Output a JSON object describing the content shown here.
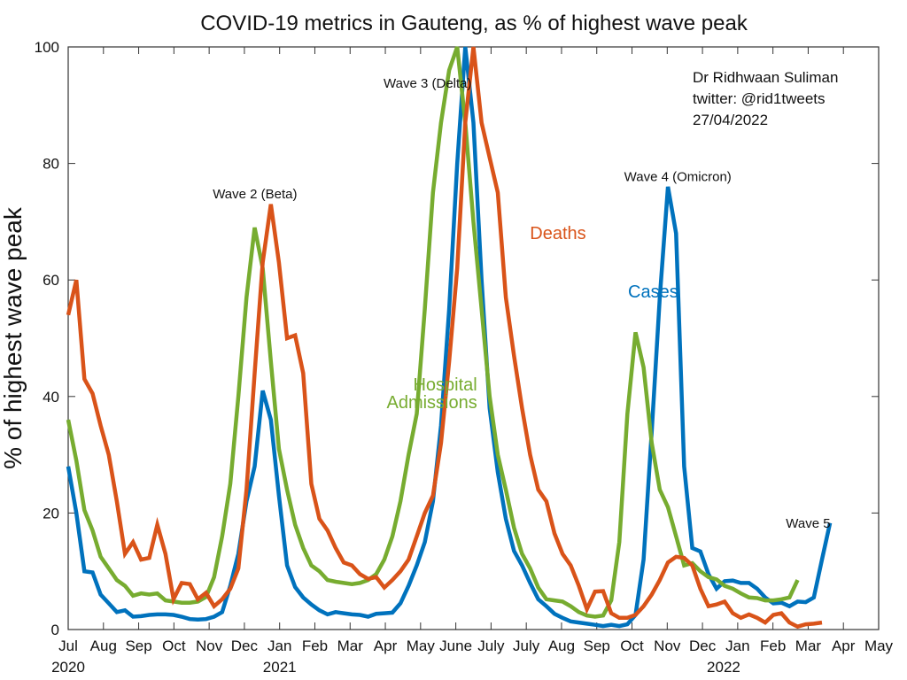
{
  "chart_data": {
    "type": "line",
    "title": "COVID-19 metrics in Gauteng, as % of highest wave peak",
    "xlabel": "",
    "ylabel": "% of highest wave peak",
    "ylim": [
      0,
      100
    ],
    "yticks": [
      0,
      20,
      40,
      60,
      80,
      100
    ],
    "x_unit": "months since Jul 2020",
    "xlim": [
      0,
      23
    ],
    "xtick_labels": [
      "Jul",
      "Aug",
      "Sep",
      "Oct",
      "Nov",
      "Dec",
      "Jan",
      "Feb",
      "Mar",
      "Apr",
      "May",
      "June",
      "July",
      "July",
      "Aug",
      "Sep",
      "Oct",
      "Nov",
      "Dec",
      "Jan",
      "Feb",
      "Mar",
      "Apr",
      "May"
    ],
    "year_labels": [
      {
        "text": "2020",
        "at": 0
      },
      {
        "text": "2021",
        "at": 6
      },
      {
        "text": "2022",
        "at": 18.6
      }
    ],
    "grid": false,
    "legend": "inline labels",
    "series": [
      {
        "name": "Cases",
        "color": "#0072BD",
        "label_at": [
          16.6,
          57
        ],
        "points": [
          [
            0,
            28
          ],
          [
            0.23,
            20
          ],
          [
            0.46,
            10
          ],
          [
            0.69,
            9.8
          ],
          [
            0.92,
            6
          ],
          [
            1.15,
            4.5
          ],
          [
            1.38,
            3
          ],
          [
            1.61,
            3.3
          ],
          [
            1.84,
            2.2
          ],
          [
            2.07,
            2.3
          ],
          [
            2.3,
            2.5
          ],
          [
            2.53,
            2.6
          ],
          [
            2.76,
            2.6
          ],
          [
            2.99,
            2.5
          ],
          [
            3.22,
            2.2
          ],
          [
            3.45,
            1.8
          ],
          [
            3.68,
            1.7
          ],
          [
            3.91,
            1.8
          ],
          [
            4.14,
            2.2
          ],
          [
            4.37,
            3
          ],
          [
            4.6,
            7.5
          ],
          [
            4.83,
            13
          ],
          [
            5.06,
            22
          ],
          [
            5.29,
            28
          ],
          [
            5.52,
            41
          ],
          [
            5.75,
            36
          ],
          [
            5.98,
            23
          ],
          [
            6.21,
            11
          ],
          [
            6.44,
            7.3
          ],
          [
            6.67,
            5.5
          ],
          [
            6.9,
            4.3
          ],
          [
            7.13,
            3.3
          ],
          [
            7.36,
            2.6
          ],
          [
            7.59,
            3
          ],
          [
            7.82,
            2.8
          ],
          [
            8.05,
            2.6
          ],
          [
            8.28,
            2.5
          ],
          [
            8.51,
            2.2
          ],
          [
            8.74,
            2.7
          ],
          [
            8.97,
            2.8
          ],
          [
            9.2,
            2.9
          ],
          [
            9.43,
            4.5
          ],
          [
            9.66,
            7.5
          ],
          [
            9.89,
            11
          ],
          [
            10.12,
            15
          ],
          [
            10.35,
            22
          ],
          [
            10.58,
            35
          ],
          [
            10.81,
            55
          ],
          [
            11.04,
            80
          ],
          [
            11.27,
            100
          ],
          [
            11.5,
            87
          ],
          [
            11.73,
            60
          ],
          [
            11.96,
            38
          ],
          [
            12.19,
            27
          ],
          [
            12.42,
            19
          ],
          [
            12.65,
            13.5
          ],
          [
            12.88,
            11
          ],
          [
            13.11,
            8
          ],
          [
            13.34,
            5.2
          ],
          [
            13.57,
            4
          ],
          [
            13.8,
            2.7
          ],
          [
            14.03,
            2
          ],
          [
            14.26,
            1.4
          ],
          [
            14.49,
            1.2
          ],
          [
            14.72,
            1
          ],
          [
            14.95,
            0.8
          ],
          [
            15.18,
            0.6
          ],
          [
            15.41,
            0.8
          ],
          [
            15.64,
            0.6
          ],
          [
            15.87,
            0.9
          ],
          [
            16.1,
            2.5
          ],
          [
            16.33,
            12
          ],
          [
            16.56,
            34
          ],
          [
            16.79,
            57
          ],
          [
            17.02,
            76
          ],
          [
            17.25,
            68
          ],
          [
            17.48,
            28
          ],
          [
            17.71,
            14
          ],
          [
            17.94,
            13.4
          ],
          [
            18.17,
            9.5
          ],
          [
            18.4,
            7
          ],
          [
            18.63,
            8.3
          ],
          [
            18.86,
            8.4
          ],
          [
            19.09,
            8
          ],
          [
            19.32,
            8
          ],
          [
            19.55,
            7
          ],
          [
            19.78,
            5.5
          ],
          [
            20.01,
            4.5
          ],
          [
            20.24,
            4.6
          ],
          [
            20.47,
            4
          ],
          [
            20.7,
            4.8
          ],
          [
            20.93,
            4.7
          ],
          [
            21.16,
            5.5
          ],
          [
            21.39,
            12
          ],
          [
            21.62,
            18.3
          ]
        ]
      },
      {
        "name": "Hospital Admissions",
        "label_lines": [
          "Hospital",
          "Admissions"
        ],
        "color": "#77AC30",
        "label_at": [
          10.3,
          41
        ],
        "points": [
          [
            0,
            36
          ],
          [
            0.23,
            29
          ],
          [
            0.46,
            20.5
          ],
          [
            0.69,
            17
          ],
          [
            0.92,
            12.5
          ],
          [
            1.15,
            10.5
          ],
          [
            1.38,
            8.5
          ],
          [
            1.61,
            7.5
          ],
          [
            1.84,
            5.8
          ],
          [
            2.07,
            6.2
          ],
          [
            2.3,
            6
          ],
          [
            2.53,
            6.2
          ],
          [
            2.76,
            5
          ],
          [
            2.99,
            4.8
          ],
          [
            3.22,
            4.6
          ],
          [
            3.45,
            4.6
          ],
          [
            3.68,
            4.8
          ],
          [
            3.91,
            5.6
          ],
          [
            4.14,
            9
          ],
          [
            4.37,
            16
          ],
          [
            4.6,
            25
          ],
          [
            4.83,
            40
          ],
          [
            5.06,
            57
          ],
          [
            5.29,
            69
          ],
          [
            5.52,
            62
          ],
          [
            5.75,
            46
          ],
          [
            5.98,
            31
          ],
          [
            6.21,
            24
          ],
          [
            6.44,
            18
          ],
          [
            6.67,
            14
          ],
          [
            6.9,
            11
          ],
          [
            7.13,
            10
          ],
          [
            7.36,
            8.5
          ],
          [
            7.59,
            8.2
          ],
          [
            7.82,
            8
          ],
          [
            8.05,
            7.8
          ],
          [
            8.28,
            8
          ],
          [
            8.51,
            8.5
          ],
          [
            8.74,
            9.5
          ],
          [
            8.97,
            12
          ],
          [
            9.2,
            16
          ],
          [
            9.43,
            22
          ],
          [
            9.66,
            30
          ],
          [
            9.89,
            37
          ],
          [
            10.12,
            55
          ],
          [
            10.35,
            75
          ],
          [
            10.58,
            87
          ],
          [
            10.81,
            96
          ],
          [
            11.04,
            100
          ],
          [
            11.27,
            87
          ],
          [
            11.5,
            70
          ],
          [
            11.73,
            55
          ],
          [
            11.96,
            40
          ],
          [
            12.19,
            30
          ],
          [
            12.42,
            24
          ],
          [
            12.65,
            17.5
          ],
          [
            12.88,
            13
          ],
          [
            13.11,
            10.5
          ],
          [
            13.34,
            7.2
          ],
          [
            13.57,
            5.2
          ],
          [
            13.8,
            5
          ],
          [
            14.03,
            4.8
          ],
          [
            14.26,
            4
          ],
          [
            14.49,
            3
          ],
          [
            14.72,
            2.4
          ],
          [
            14.95,
            2.2
          ],
          [
            15.18,
            2.4
          ],
          [
            15.41,
            5
          ],
          [
            15.64,
            15
          ],
          [
            15.87,
            37
          ],
          [
            16.1,
            51
          ],
          [
            16.33,
            45
          ],
          [
            16.56,
            32
          ],
          [
            16.79,
            24
          ],
          [
            17.02,
            21
          ],
          [
            17.25,
            16
          ],
          [
            17.48,
            11
          ],
          [
            17.71,
            11.4
          ],
          [
            17.94,
            10
          ],
          [
            18.17,
            9
          ],
          [
            18.4,
            8.6
          ],
          [
            18.63,
            7.5
          ],
          [
            18.86,
            7
          ],
          [
            19.09,
            6.2
          ],
          [
            19.32,
            5.5
          ],
          [
            19.55,
            5.4
          ],
          [
            19.78,
            5
          ],
          [
            20.01,
            5
          ],
          [
            20.24,
            5.2
          ],
          [
            20.47,
            5.5
          ],
          [
            20.7,
            8.5
          ]
        ]
      },
      {
        "name": "Deaths",
        "color": "#D95319",
        "label_at": [
          13.9,
          67
        ],
        "points": [
          [
            0,
            54
          ],
          [
            0.23,
            60
          ],
          [
            0.46,
            43
          ],
          [
            0.69,
            40.5
          ],
          [
            0.92,
            35
          ],
          [
            1.15,
            30
          ],
          [
            1.38,
            22
          ],
          [
            1.61,
            13
          ],
          [
            1.84,
            15
          ],
          [
            2.07,
            12
          ],
          [
            2.3,
            12.3
          ],
          [
            2.53,
            18
          ],
          [
            2.76,
            13
          ],
          [
            2.99,
            5.2
          ],
          [
            3.22,
            8
          ],
          [
            3.45,
            7.8
          ],
          [
            3.68,
            5.2
          ],
          [
            3.91,
            6.3
          ],
          [
            4.14,
            4
          ],
          [
            4.37,
            5.2
          ],
          [
            4.6,
            7
          ],
          [
            4.83,
            10.5
          ],
          [
            5.06,
            24
          ],
          [
            5.29,
            44
          ],
          [
            5.52,
            63
          ],
          [
            5.75,
            73
          ],
          [
            5.98,
            63
          ],
          [
            6.21,
            50
          ],
          [
            6.44,
            50.5
          ],
          [
            6.67,
            44
          ],
          [
            6.9,
            25
          ],
          [
            7.13,
            19
          ],
          [
            7.36,
            17
          ],
          [
            7.59,
            14
          ],
          [
            7.82,
            11.5
          ],
          [
            8.05,
            11
          ],
          [
            8.28,
            9.5
          ],
          [
            8.51,
            8.7
          ],
          [
            8.74,
            9
          ],
          [
            8.97,
            7.2
          ],
          [
            9.2,
            8.5
          ],
          [
            9.43,
            10
          ],
          [
            9.66,
            12
          ],
          [
            9.89,
            16
          ],
          [
            10.12,
            20
          ],
          [
            10.35,
            23
          ],
          [
            10.58,
            32
          ],
          [
            10.81,
            46
          ],
          [
            11.04,
            62
          ],
          [
            11.27,
            87
          ],
          [
            11.5,
            100
          ],
          [
            11.73,
            87
          ],
          [
            11.96,
            81
          ],
          [
            12.19,
            75
          ],
          [
            12.42,
            57
          ],
          [
            12.65,
            47
          ],
          [
            12.88,
            38
          ],
          [
            13.11,
            30
          ],
          [
            13.34,
            24
          ],
          [
            13.57,
            22
          ],
          [
            13.8,
            16.5
          ],
          [
            14.03,
            13
          ],
          [
            14.26,
            11
          ],
          [
            14.49,
            7.5
          ],
          [
            14.72,
            3.5
          ],
          [
            14.95,
            6.5
          ],
          [
            15.18,
            6.6
          ],
          [
            15.41,
            2.8
          ],
          [
            15.64,
            2
          ],
          [
            15.87,
            2
          ],
          [
            16.1,
            2.5
          ],
          [
            16.33,
            4
          ],
          [
            16.56,
            6
          ],
          [
            16.79,
            8.5
          ],
          [
            17.02,
            11.5
          ],
          [
            17.25,
            12.5
          ],
          [
            17.48,
            12.3
          ],
          [
            17.71,
            11
          ],
          [
            17.94,
            7
          ],
          [
            18.17,
            4
          ],
          [
            18.4,
            4.3
          ],
          [
            18.63,
            4.8
          ],
          [
            18.86,
            2.8
          ],
          [
            19.09,
            2
          ],
          [
            19.32,
            2.6
          ],
          [
            19.55,
            2
          ],
          [
            19.78,
            1.2
          ],
          [
            20.01,
            2.5
          ],
          [
            20.24,
            2.8
          ],
          [
            20.47,
            1.2
          ],
          [
            20.7,
            0.5
          ],
          [
            20.93,
            0.9
          ],
          [
            21.16,
            1
          ],
          [
            21.39,
            1.2
          ]
        ]
      }
    ],
    "annotations": [
      {
        "text": "Wave 2 (Beta)",
        "at": [
          5.3,
          74
        ]
      },
      {
        "text": "Wave 3 (Delta)",
        "at": [
          10.2,
          93
        ]
      },
      {
        "text": "Wave 4 (Omicron)",
        "at": [
          17.3,
          77
        ]
      },
      {
        "text": "Wave 5",
        "at": [
          21.0,
          17.5
        ]
      }
    ],
    "credit_lines": [
      "Dr Ridhwaan Suliman",
      "twitter: @rid1tweets",
      "27/04/2022"
    ]
  }
}
